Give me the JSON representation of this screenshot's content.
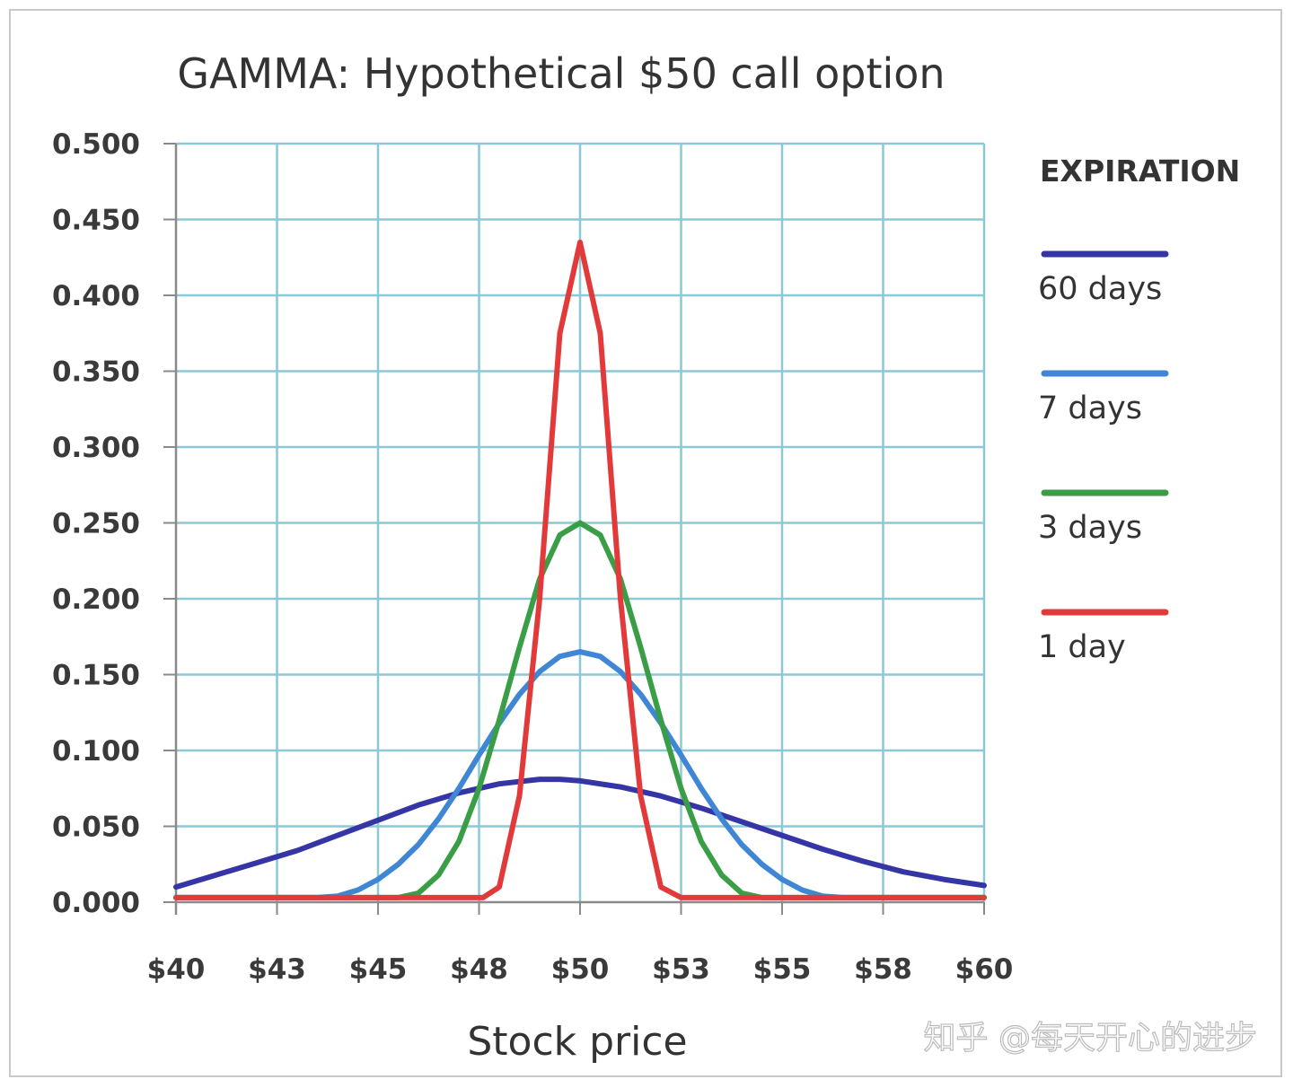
{
  "chart_data": {
    "type": "line",
    "title": "GAMMA: Hypothetical $50 call option",
    "xlabel": "Stock price",
    "ylabel": "",
    "xlim": [
      40,
      60
    ],
    "ylim": [
      0,
      0.5
    ],
    "x_ticks": [
      40,
      42.5,
      45,
      47.5,
      50,
      52.5,
      55,
      57.5,
      60
    ],
    "x_tick_labels": [
      "$40",
      "$43",
      "$45",
      "$48",
      "$50",
      "$53",
      "$55",
      "$58",
      "$60"
    ],
    "y_tick_labels": [
      "0.000",
      "0.050",
      "0.100",
      "0.150",
      "0.200",
      "0.250",
      "0.300",
      "0.350",
      "0.400",
      "0.450",
      "0.500"
    ],
    "grid": true,
    "legend_title": "EXPIRATION",
    "legend_position": "right",
    "series": [
      {
        "name": "60 days",
        "color": "#3535a5",
        "x": [
          40,
          41,
          42,
          43,
          44,
          45,
          46,
          47,
          48,
          49,
          49.5,
          50,
          51,
          52,
          53,
          54,
          55,
          56,
          57,
          58,
          59,
          60
        ],
        "y": [
          0.01,
          0.018,
          0.026,
          0.034,
          0.044,
          0.054,
          0.064,
          0.072,
          0.078,
          0.081,
          0.081,
          0.08,
          0.076,
          0.07,
          0.062,
          0.053,
          0.044,
          0.035,
          0.027,
          0.02,
          0.015,
          0.011
        ]
      },
      {
        "name": "7 days",
        "color": "#3f86d4",
        "x": [
          40,
          43.5,
          44,
          44.5,
          45,
          45.5,
          46,
          46.5,
          47,
          47.5,
          48,
          48.5,
          49,
          49.5,
          50,
          50.5,
          51,
          51.5,
          52,
          52.5,
          53,
          53.5,
          54,
          54.5,
          55,
          55.5,
          56,
          56.5,
          60
        ],
        "y": [
          0.003,
          0.003,
          0.004,
          0.008,
          0.015,
          0.025,
          0.038,
          0.055,
          0.075,
          0.097,
          0.118,
          0.137,
          0.152,
          0.162,
          0.165,
          0.162,
          0.152,
          0.137,
          0.118,
          0.097,
          0.075,
          0.055,
          0.038,
          0.025,
          0.015,
          0.008,
          0.004,
          0.003,
          0.003
        ]
      },
      {
        "name": "3 days",
        "color": "#3a9e46",
        "x": [
          40,
          45.5,
          46,
          46.5,
          47,
          47.5,
          48,
          48.5,
          49,
          49.5,
          50,
          50.5,
          51,
          51.5,
          52,
          52.5,
          53,
          53.5,
          54,
          54.5,
          60
        ],
        "y": [
          0.003,
          0.003,
          0.006,
          0.018,
          0.04,
          0.075,
          0.12,
          0.168,
          0.213,
          0.242,
          0.25,
          0.242,
          0.213,
          0.168,
          0.12,
          0.075,
          0.04,
          0.018,
          0.006,
          0.003,
          0.003
        ]
      },
      {
        "name": "1 day",
        "color": "#e23a3a",
        "x": [
          40,
          47.6,
          48,
          48.5,
          49,
          49.5,
          50,
          50.5,
          51,
          51.5,
          52,
          52.5,
          53.2,
          53.6,
          60
        ],
        "y": [
          0.003,
          0.003,
          0.01,
          0.07,
          0.2,
          0.375,
          0.435,
          0.375,
          0.2,
          0.07,
          0.01,
          0.003,
          0.003,
          0.003,
          0.003
        ]
      }
    ]
  },
  "watermark": "知乎 @每天开心的进步"
}
